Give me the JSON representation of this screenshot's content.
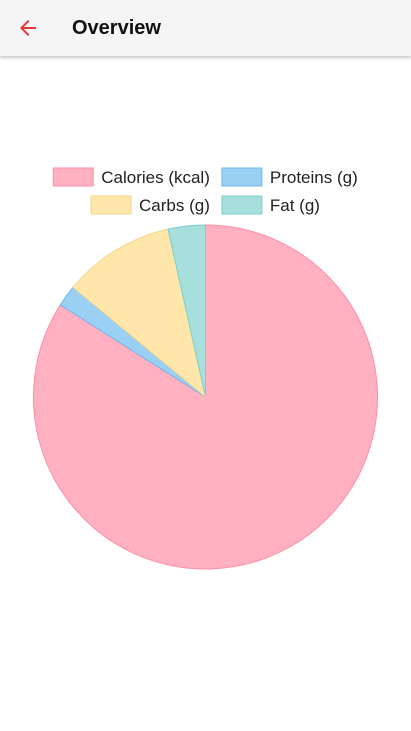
{
  "appbar": {
    "title": "Overview",
    "back_icon": "arrow-left-icon",
    "accent_color": "#e53935"
  },
  "chart_data": {
    "type": "pie",
    "title": "",
    "legend_position": "top",
    "categories": [
      "Calories (kcal)",
      "Proteins (g)",
      "Carbs (g)",
      "Fat (g)"
    ],
    "values": [
      84,
      2,
      10.5,
      3.5
    ],
    "colors": [
      "#ffb0c1",
      "#9bd0f5",
      "#ffe6aa",
      "#a6dfdb"
    ],
    "border_colors": [
      "#ff8fa8",
      "#6fb8ec",
      "#f5d48a",
      "#7fcfc9"
    ]
  }
}
